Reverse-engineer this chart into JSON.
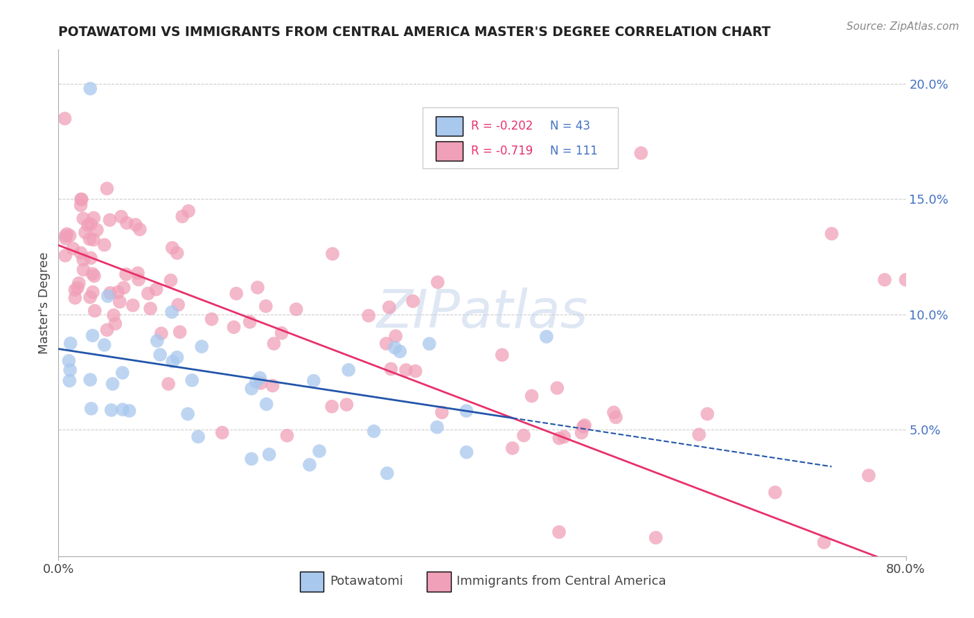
{
  "title": "POTAWATOMI VS IMMIGRANTS FROM CENTRAL AMERICA MASTER'S DEGREE CORRELATION CHART",
  "source": "Source: ZipAtlas.com",
  "ylabel": "Master's Degree",
  "xlim": [
    0.0,
    0.8
  ],
  "ylim": [
    -0.005,
    0.215
  ],
  "blue_R": "-0.202",
  "blue_N": "43",
  "pink_R": "-0.719",
  "pink_N": "111",
  "blue_color": "#A8C8EE",
  "pink_color": "#F0A0B8",
  "blue_line_color": "#2255AA",
  "pink_line_color": "#E8306A",
  "grid_color": "#cccccc",
  "watermark_color": "#C8D8EC",
  "blue_label": "Potawatomi",
  "pink_label": "Immigrants from Central America"
}
